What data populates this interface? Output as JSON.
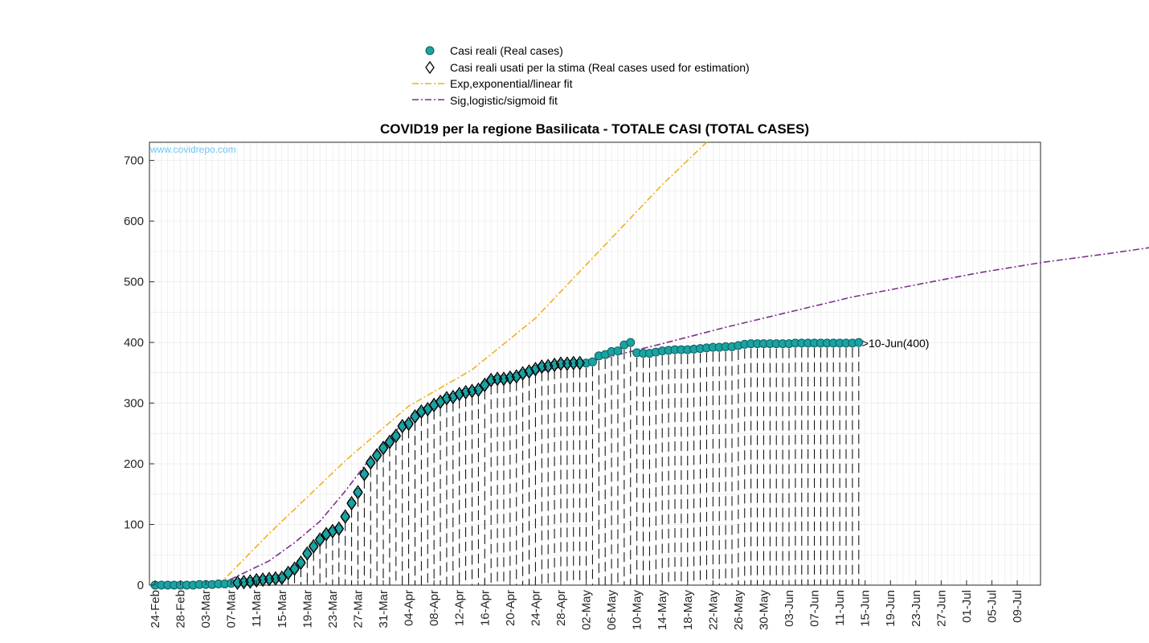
{
  "chart_data": {
    "type": "line",
    "title": "COVID19 per la regione Basilicata - TOTALE CASI (TOTAL CASES)",
    "watermark": "www.covidrepo.com",
    "xlabel": "",
    "ylabel": "",
    "x_start_date": "2020-02-24",
    "x_end_date": "2020-07-11",
    "ylim": [
      0,
      730
    ],
    "yticks": [
      0,
      100,
      200,
      300,
      400,
      500,
      600,
      700
    ],
    "xtick_labels": [
      "24-Feb",
      "28-Feb",
      "03-Mar",
      "07-Mar",
      "11-Mar",
      "15-Mar",
      "19-Mar",
      "23-Mar",
      "27-Mar",
      "31-Mar",
      "04-Apr",
      "08-Apr",
      "12-Apr",
      "16-Apr",
      "20-Apr",
      "24-Apr",
      "28-Apr",
      "02-May",
      "06-May",
      "10-May",
      "14-May",
      "18-May",
      "22-May",
      "26-May",
      "30-May",
      "03-Jun",
      "07-Jun",
      "11-Jun",
      "15-Jun",
      "19-Jun",
      "23-Jun",
      "27-Jun",
      "01-Jul",
      "05-Jul",
      "09-Jul"
    ],
    "grid": true,
    "legend_position": "top-center",
    "annotation": ">10-Jun(400)",
    "colors": {
      "real": "#1aa3a3",
      "exp": "#f0b21a",
      "sig": "#7e2f8e",
      "grid": "#e6e6e6"
    },
    "series": [
      {
        "name": "Casi reali (Real cases)",
        "marker": "circle",
        "values": [
          0,
          0,
          0,
          0,
          0,
          0,
          0,
          1,
          1,
          1,
          2,
          2,
          3,
          4,
          5,
          6,
          8,
          9,
          10,
          11,
          12,
          20,
          27,
          37,
          52,
          64,
          75,
          84,
          89,
          93,
          113,
          135,
          153,
          183,
          202,
          214,
          226,
          236,
          246,
          262,
          266,
          278,
          286,
          290,
          297,
          302,
          308,
          310,
          315,
          318,
          320,
          322,
          330,
          338,
          340,
          340,
          342,
          344,
          349,
          352,
          356,
          360,
          361,
          363,
          365,
          365,
          366,
          366,
          366,
          368,
          378,
          380,
          385,
          386,
          396,
          400,
          383,
          382,
          382,
          384,
          386,
          387,
          388,
          388,
          388,
          389,
          390,
          391,
          392,
          392,
          393,
          393,
          395,
          397,
          398,
          398,
          398,
          398,
          398,
          398,
          398,
          399,
          399,
          399,
          399,
          399,
          399,
          399,
          399,
          399,
          399,
          400
        ]
      },
      {
        "name": "Casi reali usati per la stima (Real cases used for estimation)",
        "marker": "diamond",
        "start_index": 13,
        "end_index": 67
      },
      {
        "name": "Exp,exponential/linear fit",
        "style": "dash-dot",
        "points": [
          [
            10,
            0
          ],
          [
            18,
            85
          ],
          [
            30,
            205
          ],
          [
            40,
            295
          ],
          [
            50,
            355
          ],
          [
            60,
            440
          ],
          [
            70,
            550
          ],
          [
            80,
            660
          ],
          [
            87,
            730
          ]
        ]
      },
      {
        "name": "Sig,logistic/sigmoid fit",
        "style": "dash-dot",
        "points": [
          [
            10,
            0
          ],
          [
            18,
            40
          ],
          [
            22,
            70
          ],
          [
            26,
            105
          ],
          [
            30,
            155
          ],
          [
            34,
            210
          ],
          [
            38,
            255
          ],
          [
            42,
            290
          ],
          [
            48,
            318
          ],
          [
            55,
            338
          ],
          [
            62,
            355
          ],
          [
            70,
            372
          ],
          [
            80,
            398
          ],
          [
            90,
            425
          ],
          [
            100,
            450
          ],
          [
            110,
            475
          ],
          [
            120,
            495
          ],
          [
            130,
            515
          ],
          [
            140,
            532
          ],
          [
            150,
            546
          ],
          [
            160,
            561
          ]
        ]
      }
    ]
  }
}
